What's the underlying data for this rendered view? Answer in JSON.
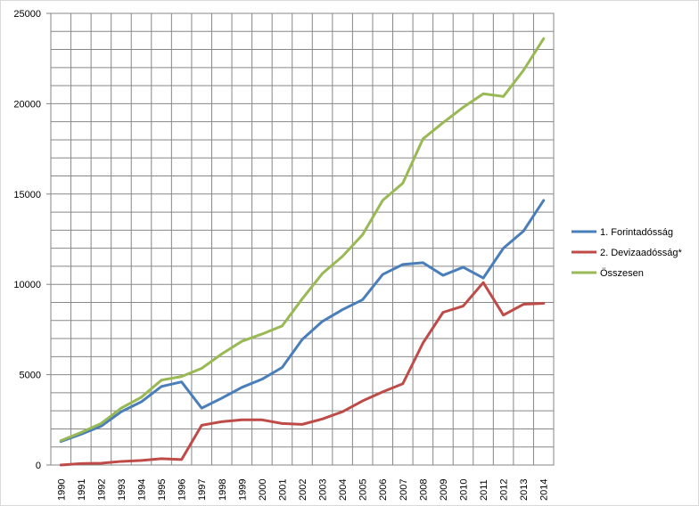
{
  "chart_data": {
    "type": "line",
    "title": "",
    "xlabel": "",
    "ylabel": "",
    "x": [
      1990,
      1991,
      1992,
      1993,
      1994,
      1995,
      1996,
      1997,
      1998,
      1999,
      2000,
      2001,
      2002,
      2003,
      2004,
      2005,
      2006,
      2007,
      2008,
      2009,
      2010,
      2011,
      2012,
      2013,
      2014
    ],
    "ylim": [
      0,
      25000
    ],
    "yticks": [
      0,
      5000,
      10000,
      15000,
      20000,
      25000
    ],
    "grid": true,
    "legend_position": "right",
    "series": [
      {
        "name": "1. Forintadósság",
        "color": "#4a7ebb",
        "values": [
          1300,
          1700,
          2150,
          2950,
          3500,
          4350,
          4600,
          3150,
          3700,
          4300,
          4750,
          5400,
          6950,
          7950,
          8600,
          9150,
          10550,
          11100,
          11200,
          10500,
          10950,
          10350,
          12000,
          12950,
          14650
        ]
      },
      {
        "name": "2. Devizaadósság*",
        "color": "#be4b48",
        "values": [
          0,
          80,
          100,
          200,
          250,
          350,
          300,
          2200,
          2400,
          2500,
          2500,
          2300,
          2250,
          2550,
          2950,
          3550,
          4050,
          4500,
          6750,
          8450,
          8800,
          10100,
          8300,
          8900,
          8950
        ]
      },
      {
        "name": "Összesen",
        "color": "#98b954",
        "values": [
          1350,
          1800,
          2300,
          3150,
          3750,
          4700,
          4900,
          5350,
          6150,
          6850,
          7250,
          7700,
          9200,
          10600,
          11550,
          12750,
          14650,
          15600,
          18050,
          18950,
          19800,
          20550,
          20400,
          21850,
          23600
        ]
      }
    ]
  }
}
